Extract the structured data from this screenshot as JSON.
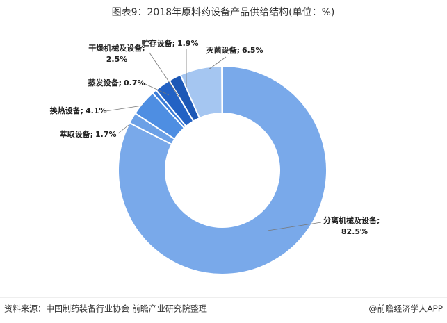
{
  "chart_data": {
    "type": "donut",
    "title": "图表9：2018年原料药设备产品供给结构(单位：%)",
    "categories": [
      "分离机械及设备;",
      "萃取设备;",
      "换热设备;",
      "蒸发设备;",
      "干燥机械及设备;",
      "贮存设备;",
      "灭菌设备;"
    ],
    "values": [
      82.5,
      1.7,
      4.1,
      0.7,
      2.5,
      1.9,
      6.5
    ],
    "value_labels": [
      "82.5%",
      "1.7%",
      "4.1%",
      "0.7%",
      "2.5%",
      "1.9%",
      "6.5%"
    ],
    "colors": [
      "#79a9ea",
      "#6ba0e6",
      "#4e8ee2",
      "#3b7cd8",
      "#2362c4",
      "#1d58b6",
      "#a5c6f1"
    ],
    "source": "资料来源：中国制药装备行业协会 前瞻产业研究院整理",
    "credit": "@前瞻经济学人APP"
  }
}
